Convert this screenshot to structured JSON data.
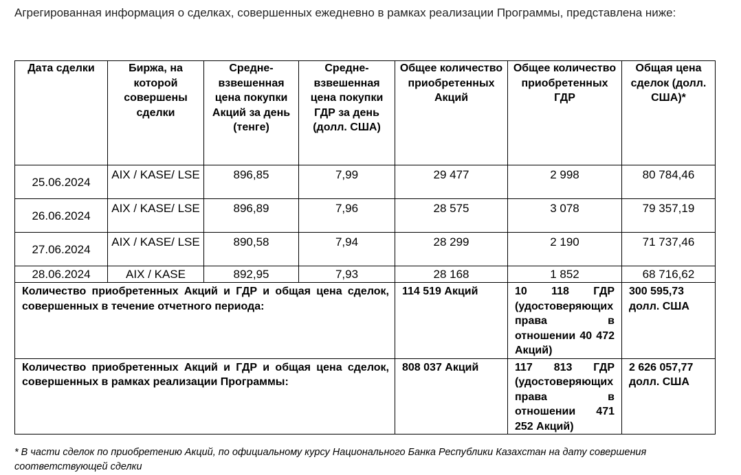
{
  "intro_text": "Агрегированная информация о сделках, совершенных ежедневно в рамках реализации Программы, представлена ниже:",
  "table": {
    "headers": [
      "Дата сделки",
      "Биржа, на которой совершены сделки",
      "Средне-взвешенная цена покупки Акций за день (тенге)",
      "Средне-взвешенная цена покупки ГДР за день (долл. США)",
      "Общее количество приобретенных Акций",
      "Общее количество приобретенных ГДР",
      "Общая цена сделок (долл. США)*"
    ],
    "rows": [
      [
        "25.06.2024",
        "AIX / KASE/ LSE",
        "896,85",
        "7,99",
        "29 477",
        "2 998",
        "80 784,46"
      ],
      [
        "26.06.2024",
        "AIX / KASE/ LSE",
        "896,89",
        "7,96",
        "28 575",
        "3 078",
        "79 357,19"
      ],
      [
        "27.06.2024",
        "AIX / KASE/ LSE",
        "890,58",
        "7,94",
        "28 299",
        "2 190",
        "71 737,46"
      ],
      [
        "28.06.2024",
        "AIX / KASE",
        "892,95",
        "7,93",
        "28 168",
        "1 852",
        "68 716,62"
      ]
    ],
    "summary_period": {
      "label": "Количество приобретенных Акций и ГДР и общая цена сделок, совершенных в течение отчетного периода:",
      "shares": "114 519 Акций",
      "gdr": "10 118 ГДР (удостоверяющих права в отношении 40 472 Акций)",
      "total": "300 595,73 долл. США"
    },
    "summary_program": {
      "label": "Количество приобретенных Акций и ГДР и общая цена сделок, совершенных в рамках реализации Программы:",
      "shares": "808 037 Акций",
      "gdr": "117 813 ГДР (удостоверяющих права в отношении 471 252 Акций)",
      "total": "2 626 057,77 долл. США"
    }
  },
  "footnote": "* В части сделок по приобретению Акций, по официальному курсу Национального Банка Республики Казахстан на дату совершения соответствующей сделки"
}
